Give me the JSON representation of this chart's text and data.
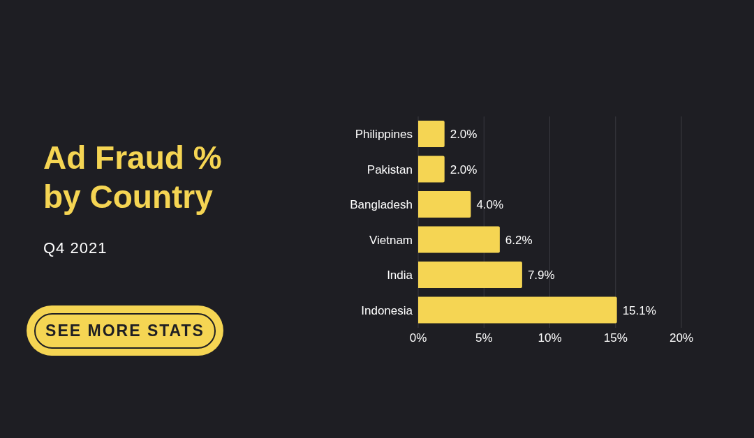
{
  "chart_data": {
    "type": "bar",
    "orientation": "horizontal",
    "title": "Ad Fraud % by Country",
    "subtitle": "Q4 2021",
    "annotations": [
      "SEE MORE STATS"
    ],
    "categories": [
      "Philippines",
      "Pakistan",
      "Bangladesh",
      "Vietnam",
      "India",
      "Indonesia"
    ],
    "values": [
      2.0,
      2.0,
      4.0,
      6.2,
      7.9,
      15.1
    ],
    "value_labels": [
      "2.0%",
      "2.0%",
      "4.0%",
      "6.2%",
      "7.9%",
      "15.1%"
    ],
    "color": "#f5d553",
    "xlim": [
      0,
      20
    ],
    "xticks": [
      {
        "value": 0,
        "label": "0%"
      },
      {
        "value": 5,
        "label": "5%"
      },
      {
        "value": 10,
        "label": "10%"
      },
      {
        "value": 15,
        "label": "15%"
      },
      {
        "value": 20,
        "label": "20%"
      }
    ],
    "grid": "x",
    "legend": false
  }
}
